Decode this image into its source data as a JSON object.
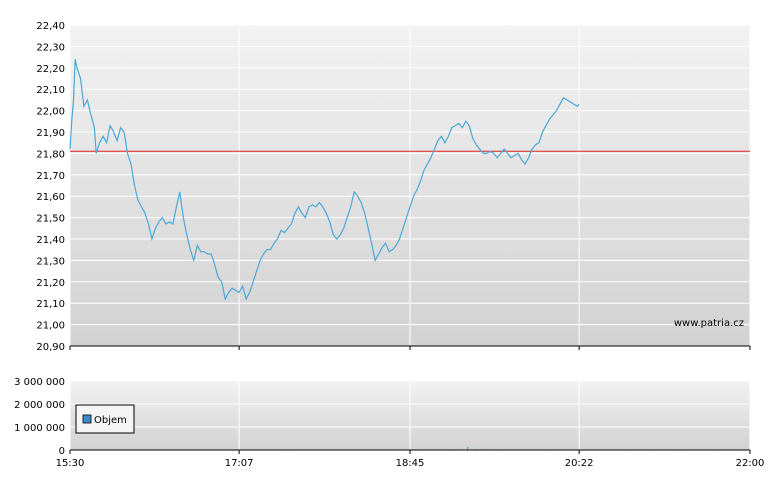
{
  "watermark": "www.patria.cz",
  "colors": {
    "price_line": "#4aa8d8",
    "reference_line": "#e02020",
    "volume_bars": "#4aa8d8",
    "legend_swatch": "#3a8cc8",
    "plot_top": "#f2f2f2",
    "plot_bottom": "#d2d2d2",
    "grid": "#ffffff",
    "axis": "#000000"
  },
  "chart_data": [
    {
      "type": "line",
      "name": "price-chart",
      "reference_value": 21.81,
      "ylim": [
        20.9,
        22.4
      ],
      "y_ticks": [
        "22,40",
        "22,30",
        "22,20",
        "22,10",
        "22,00",
        "21,90",
        "21,80",
        "21,70",
        "21,60",
        "21,50",
        "21,40",
        "21,30",
        "21,20",
        "21,10",
        "21,00",
        "20,90"
      ],
      "y_tick_values": [
        22.4,
        22.3,
        22.2,
        22.1,
        22.0,
        21.9,
        21.8,
        21.7,
        21.6,
        21.5,
        21.4,
        21.3,
        21.2,
        21.1,
        21.0,
        20.9
      ],
      "x_range": [
        "15:30",
        "22:00"
      ],
      "x_ticks": [
        "15:30",
        "17:07",
        "18:45",
        "20:22",
        "22:00"
      ],
      "series": [
        {
          "points": [
            [
              "15:30",
              21.82
            ],
            [
              "15:31",
              21.95
            ],
            [
              "15:32",
              22.05
            ],
            [
              "15:33",
              22.24
            ],
            [
              "15:34",
              22.2
            ],
            [
              "15:36",
              22.15
            ],
            [
              "15:38",
              22.02
            ],
            [
              "15:40",
              22.05
            ],
            [
              "15:42",
              21.98
            ],
            [
              "15:44",
              21.92
            ],
            [
              "15:45",
              21.8
            ],
            [
              "15:47",
              21.85
            ],
            [
              "15:49",
              21.88
            ],
            [
              "15:51",
              21.85
            ],
            [
              "15:53",
              21.93
            ],
            [
              "15:55",
              21.9
            ],
            [
              "15:57",
              21.86
            ],
            [
              "15:59",
              21.92
            ],
            [
              "16:01",
              21.9
            ],
            [
              "16:03",
              21.8
            ],
            [
              "16:05",
              21.75
            ],
            [
              "16:07",
              21.65
            ],
            [
              "16:09",
              21.58
            ],
            [
              "16:11",
              21.55
            ],
            [
              "16:13",
              21.52
            ],
            [
              "16:15",
              21.47
            ],
            [
              "16:17",
              21.4
            ],
            [
              "16:19",
              21.45
            ],
            [
              "16:21",
              21.48
            ],
            [
              "16:23",
              21.5
            ],
            [
              "16:25",
              21.47
            ],
            [
              "16:27",
              21.48
            ],
            [
              "16:29",
              21.47
            ],
            [
              "16:31",
              21.55
            ],
            [
              "16:33",
              21.62
            ],
            [
              "16:35",
              21.5
            ],
            [
              "16:37",
              21.42
            ],
            [
              "16:39",
              21.35
            ],
            [
              "16:41",
              21.3
            ],
            [
              "16:43",
              21.37
            ],
            [
              "16:45",
              21.34
            ],
            [
              "16:47",
              21.34
            ],
            [
              "16:49",
              21.33
            ],
            [
              "16:51",
              21.33
            ],
            [
              "16:53",
              21.28
            ],
            [
              "16:55",
              21.22
            ],
            [
              "16:57",
              21.2
            ],
            [
              "16:59",
              21.12
            ],
            [
              "17:01",
              21.15
            ],
            [
              "17:03",
              21.17
            ],
            [
              "17:05",
              21.16
            ],
            [
              "17:07",
              21.15
            ],
            [
              "17:09",
              21.18
            ],
            [
              "17:11",
              21.12
            ],
            [
              "17:13",
              21.15
            ],
            [
              "17:15",
              21.2
            ],
            [
              "17:17",
              21.25
            ],
            [
              "17:19",
              21.3
            ],
            [
              "17:21",
              21.33
            ],
            [
              "17:23",
              21.35
            ],
            [
              "17:25",
              21.35
            ],
            [
              "17:27",
              21.38
            ],
            [
              "17:29",
              21.4
            ],
            [
              "17:31",
              21.44
            ],
            [
              "17:33",
              21.43
            ],
            [
              "17:35",
              21.45
            ],
            [
              "17:37",
              21.47
            ],
            [
              "17:39",
              21.52
            ],
            [
              "17:41",
              21.55
            ],
            [
              "17:43",
              21.52
            ],
            [
              "17:45",
              21.5
            ],
            [
              "17:47",
              21.55
            ],
            [
              "17:49",
              21.56
            ],
            [
              "17:51",
              21.55
            ],
            [
              "17:53",
              21.57
            ],
            [
              "17:55",
              21.55
            ],
            [
              "17:57",
              21.52
            ],
            [
              "17:59",
              21.48
            ],
            [
              "18:01",
              21.42
            ],
            [
              "18:03",
              21.4
            ],
            [
              "18:05",
              21.42
            ],
            [
              "18:07",
              21.45
            ],
            [
              "18:09",
              21.5
            ],
            [
              "18:11",
              21.55
            ],
            [
              "18:13",
              21.62
            ],
            [
              "18:15",
              21.6
            ],
            [
              "18:17",
              21.57
            ],
            [
              "18:19",
              21.52
            ],
            [
              "18:21",
              21.45
            ],
            [
              "18:23",
              21.38
            ],
            [
              "18:25",
              21.3
            ],
            [
              "18:27",
              21.33
            ],
            [
              "18:29",
              21.36
            ],
            [
              "18:31",
              21.38
            ],
            [
              "18:33",
              21.34
            ],
            [
              "18:35",
              21.35
            ],
            [
              "18:37",
              21.37
            ],
            [
              "18:39",
              21.4
            ],
            [
              "18:41",
              21.45
            ],
            [
              "18:43",
              21.5
            ],
            [
              "18:45",
              21.55
            ],
            [
              "18:47",
              21.6
            ],
            [
              "18:49",
              21.63
            ],
            [
              "18:51",
              21.67
            ],
            [
              "18:53",
              21.72
            ],
            [
              "18:55",
              21.75
            ],
            [
              "18:57",
              21.78
            ],
            [
              "18:59",
              21.82
            ],
            [
              "19:01",
              21.86
            ],
            [
              "19:03",
              21.88
            ],
            [
              "19:05",
              21.85
            ],
            [
              "19:07",
              21.88
            ],
            [
              "19:09",
              21.92
            ],
            [
              "19:11",
              21.93
            ],
            [
              "19:13",
              21.94
            ],
            [
              "19:15",
              21.92
            ],
            [
              "19:17",
              21.95
            ],
            [
              "19:19",
              21.93
            ],
            [
              "19:21",
              21.87
            ],
            [
              "19:23",
              21.84
            ],
            [
              "19:25",
              21.82
            ],
            [
              "19:27",
              21.8
            ],
            [
              "19:29",
              21.8
            ],
            [
              "19:31",
              21.81
            ],
            [
              "19:33",
              21.8
            ],
            [
              "19:35",
              21.78
            ],
            [
              "19:37",
              21.8
            ],
            [
              "19:39",
              21.82
            ],
            [
              "19:41",
              21.8
            ],
            [
              "19:43",
              21.78
            ],
            [
              "19:45",
              21.79
            ],
            [
              "19:47",
              21.8
            ],
            [
              "19:49",
              21.77
            ],
            [
              "19:51",
              21.75
            ],
            [
              "19:53",
              21.78
            ],
            [
              "19:55",
              21.82
            ],
            [
              "19:57",
              21.84
            ],
            [
              "19:59",
              21.85
            ],
            [
              "20:01",
              21.9
            ],
            [
              "20:03",
              21.93
            ],
            [
              "20:05",
              21.96
            ],
            [
              "20:07",
              21.98
            ],
            [
              "20:09",
              22.0
            ],
            [
              "20:11",
              22.03
            ],
            [
              "20:13",
              22.06
            ],
            [
              "20:15",
              22.05
            ],
            [
              "20:17",
              22.04
            ],
            [
              "20:19",
              22.03
            ],
            [
              "20:21",
              22.02
            ],
            [
              "20:22",
              22.03
            ]
          ]
        }
      ]
    },
    {
      "type": "bar",
      "name": "volume-chart",
      "ylim": [
        0,
        3000000
      ],
      "y_ticks": [
        "3 000 000",
        "2 000 000",
        "1 000 000",
        "0"
      ],
      "y_tick_values": [
        3000000,
        2000000,
        1000000,
        0
      ],
      "x_range": [
        "15:30",
        "22:00"
      ],
      "x_ticks": [
        "15:30",
        "17:07",
        "18:45",
        "20:22",
        "22:00"
      ],
      "legend": "Objem",
      "legend_position": "bottom-left",
      "series": [
        {
          "name": "Objem",
          "bars": [
            [
              "17:05",
              8000
            ],
            [
              "17:35",
              6000
            ],
            [
              "18:50",
              12000
            ],
            [
              "19:05",
              15000
            ],
            [
              "19:10",
              30000
            ],
            [
              "19:14",
              18000
            ],
            [
              "19:18",
              140000
            ],
            [
              "19:22",
              40000
            ],
            [
              "19:26",
              25000
            ],
            [
              "19:30",
              20000
            ],
            [
              "19:35",
              12000
            ],
            [
              "20:05",
              8000
            ],
            [
              "20:35",
              15000
            ],
            [
              "20:50",
              10000
            ],
            [
              "21:05",
              10000
            ],
            [
              "21:20",
              8000
            ],
            [
              "21:40",
              12000
            ],
            [
              "21:55",
              10000
            ]
          ]
        }
      ]
    }
  ]
}
